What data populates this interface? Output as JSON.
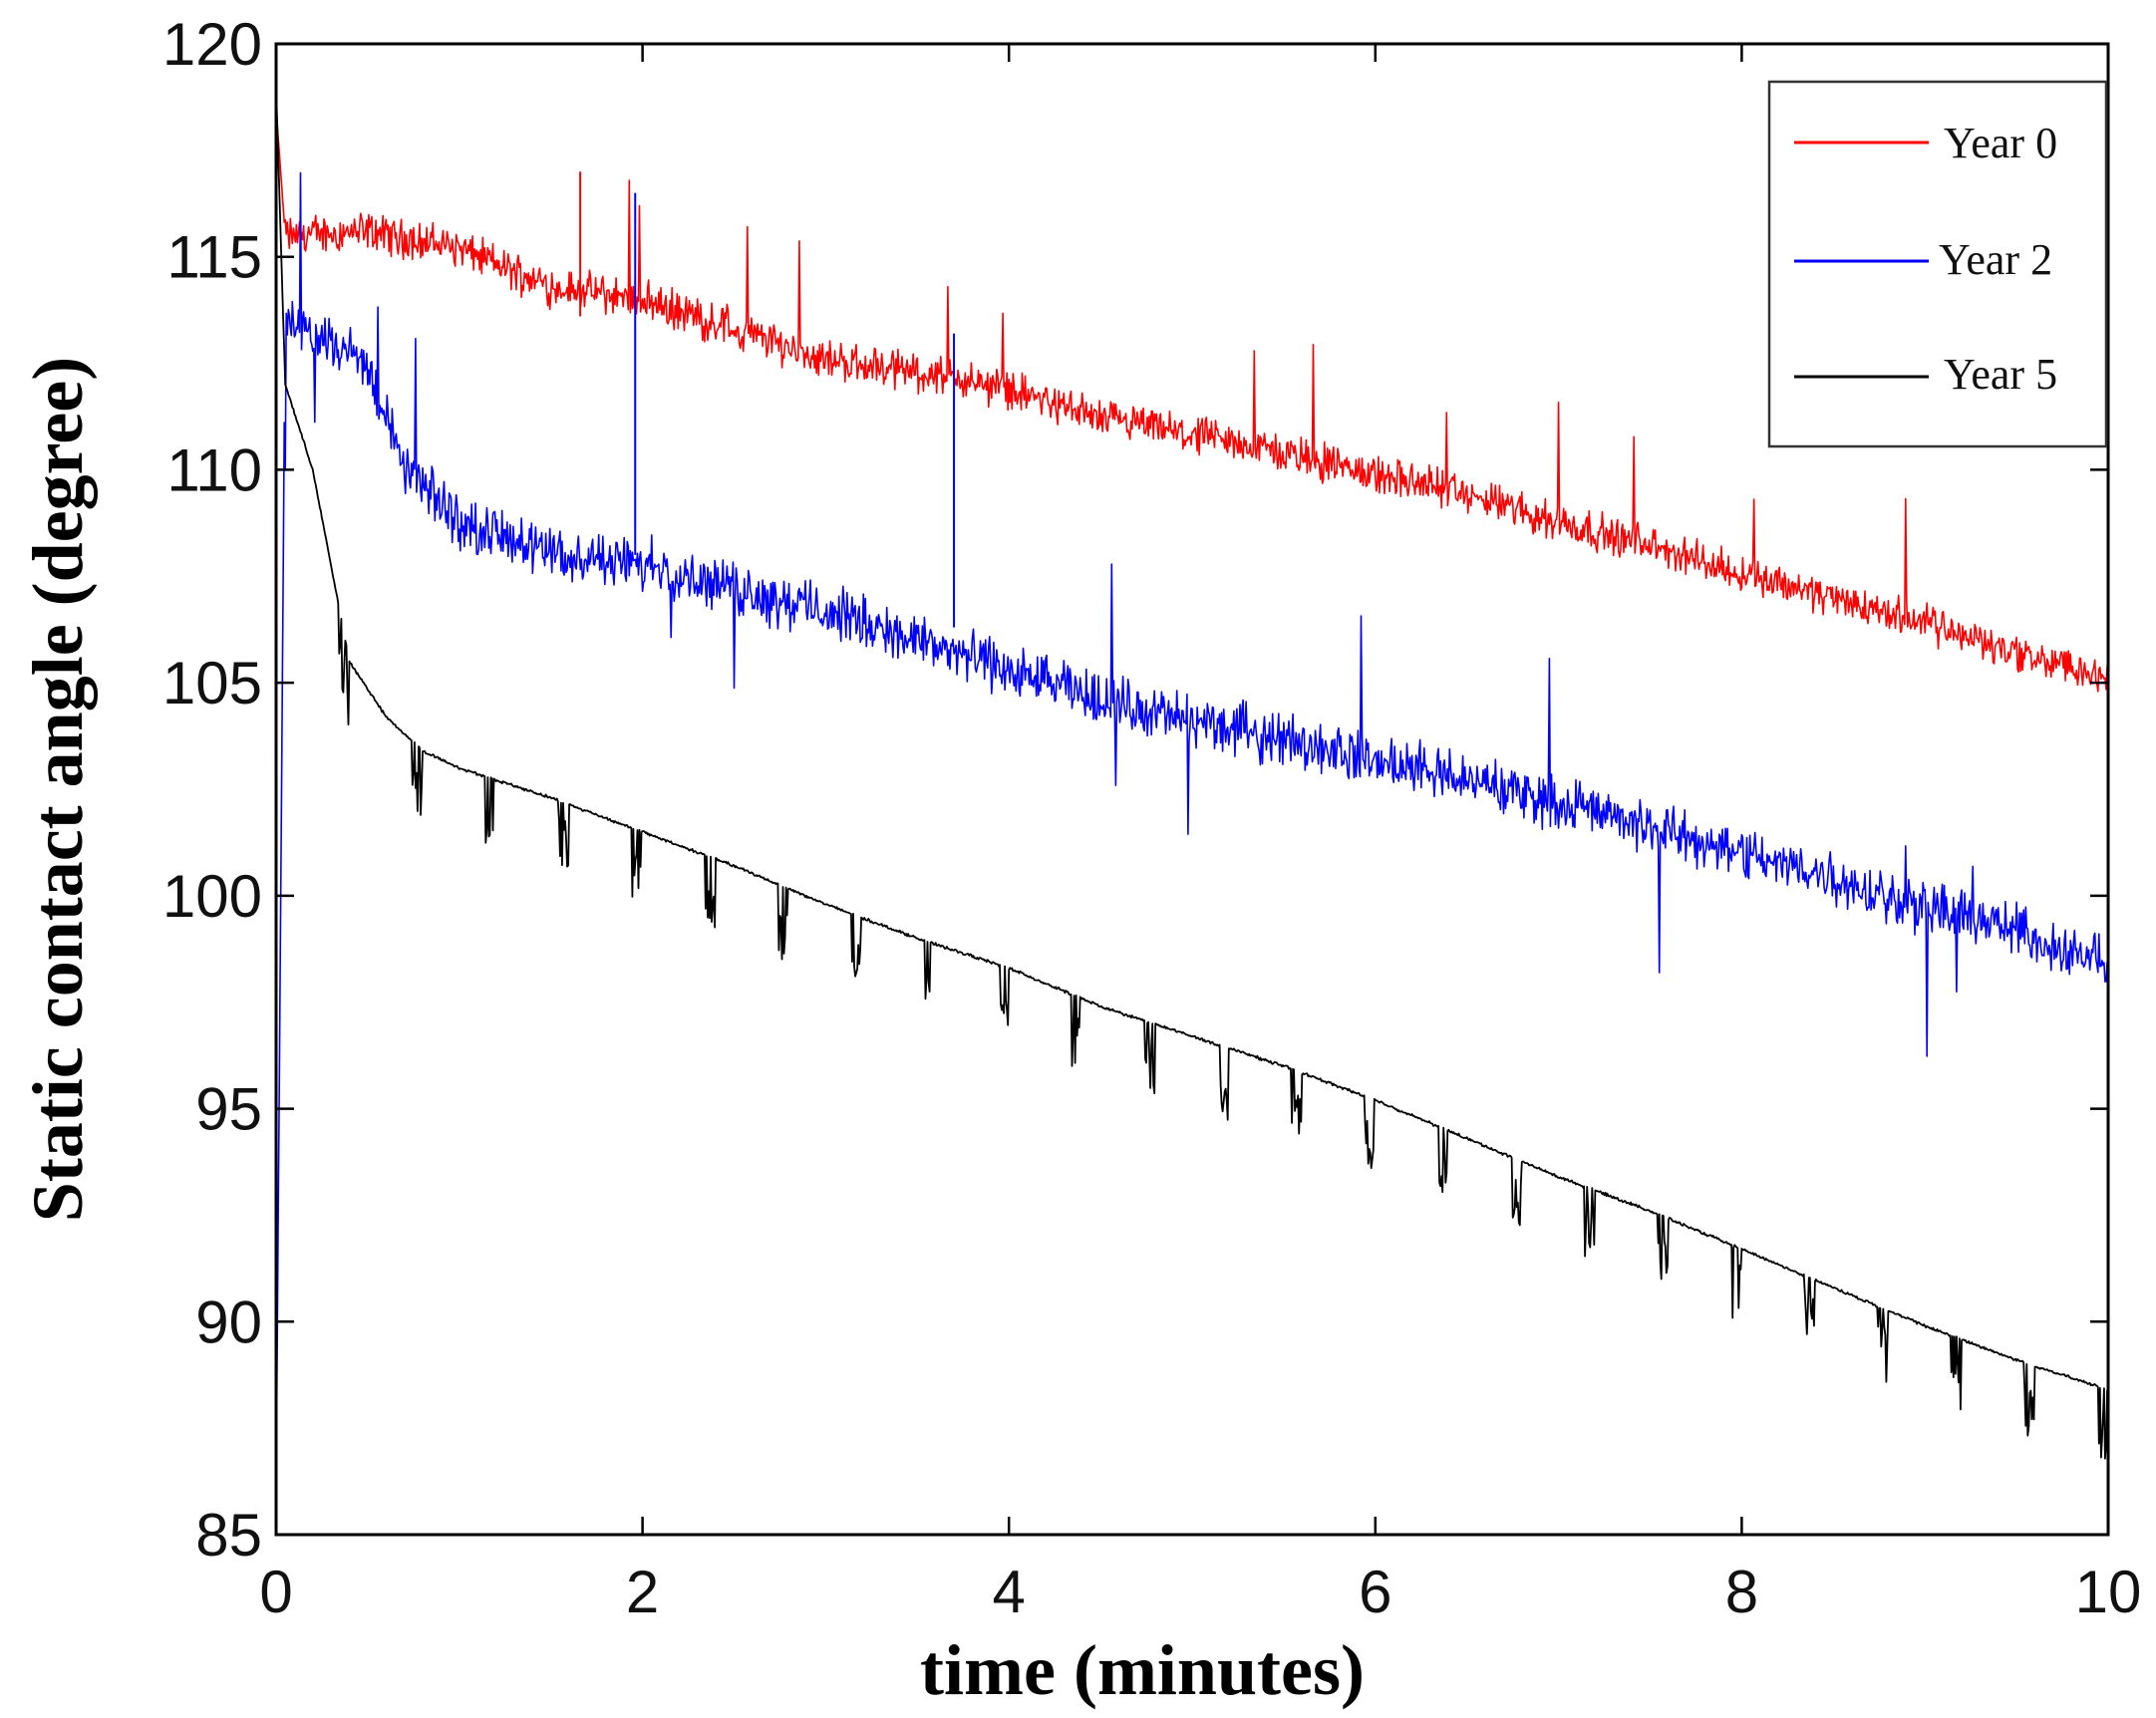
{
  "chart_data": {
    "type": "line",
    "title": "",
    "xlabel": "time (minutes)",
    "ylabel": "Static contact angle (degree)",
    "xlim": [
      0,
      10
    ],
    "ylim": [
      85,
      120
    ],
    "xticks": [
      0,
      2,
      4,
      6,
      8,
      10
    ],
    "yticks": [
      85,
      90,
      95,
      100,
      105,
      110,
      115,
      120
    ],
    "grid": false,
    "legend_position": "top-right",
    "series": [
      {
        "name": "Year 0",
        "color": "#ff0000",
        "x": [
          0,
          0.05,
          0.5,
          1,
          1.5,
          2,
          2.5,
          3,
          3.5,
          4,
          4.5,
          5,
          5.5,
          6,
          6.5,
          7,
          7.5,
          8,
          8.5,
          9,
          9.5,
          10
        ],
        "y": [
          118.5,
          115.5,
          115.6,
          115.2,
          114.3,
          114.0,
          113.3,
          112.6,
          112.3,
          111.9,
          111.2,
          110.8,
          110.4,
          109.9,
          109.4,
          108.8,
          108.2,
          107.6,
          107.0,
          106.4,
          105.7,
          105.1
        ]
      },
      {
        "name": "Year 2",
        "color": "#0000ff",
        "x": [
          0,
          0.05,
          0.5,
          0.7,
          1,
          1.5,
          2,
          2.5,
          3,
          3.5,
          4,
          4.5,
          5,
          5.5,
          6,
          6.5,
          7,
          7.5,
          8,
          8.5,
          9,
          9.5,
          10
        ],
        "y": [
          86,
          113.6,
          112.5,
          110,
          108.8,
          108.0,
          107.8,
          107.2,
          106.7,
          106.0,
          105.3,
          104.6,
          104.1,
          103.7,
          103.2,
          102.7,
          102.2,
          101.6,
          101.0,
          100.4,
          99.7,
          99.2,
          98.4
        ]
      },
      {
        "name": "Year 5",
        "color": "#000000",
        "x": [
          0,
          0.05,
          0.2,
          0.4,
          0.6,
          0.8,
          1,
          1.5,
          2,
          2.5,
          3,
          3.5,
          4,
          4.5,
          5,
          5.5,
          6,
          6.5,
          7,
          7.5,
          8,
          8.5,
          9,
          9.5,
          10
        ],
        "y": [
          119,
          112,
          110,
          105.5,
          104.2,
          103.4,
          103.0,
          102.3,
          101.5,
          100.7,
          99.8,
          99.0,
          98.3,
          97.4,
          96.7,
          96.0,
          95.2,
          94.3,
          93.4,
          92.6,
          91.7,
          90.8,
          89.9,
          89.1,
          88.4
        ]
      }
    ]
  }
}
